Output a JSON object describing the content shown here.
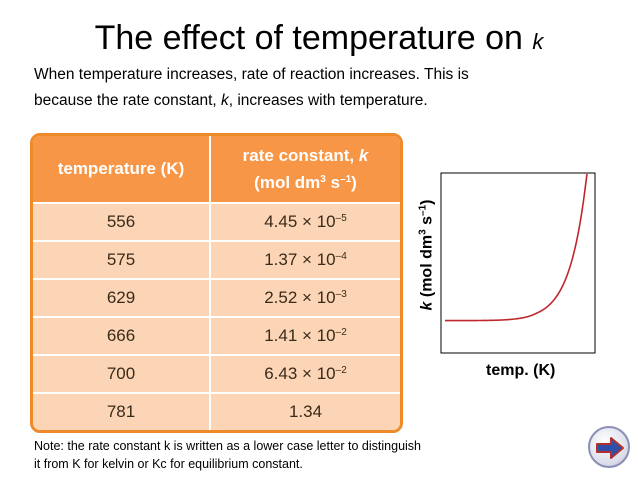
{
  "title": {
    "text": "The effect of temperature on ",
    "kvar": "k"
  },
  "intro": {
    "line1": "When temperature increases, rate of reaction increases. This is",
    "line2_pre": "because the rate constant, ",
    "line2_kvar": "k",
    "line2_post": ", increases with temperature."
  },
  "table": {
    "header_temp": "temperature (K)",
    "header_k_pre": "rate constant, ",
    "header_k_var": "k",
    "header_k_unit_a": "(mol dm",
    "header_k_unit_sup1": "3",
    "header_k_unit_b": " s",
    "header_k_unit_sup2": "–1",
    "header_k_unit_c": ")",
    "rows": [
      {
        "temp": "556",
        "mant": "4.45",
        "times": "×",
        "base": "10",
        "exp": "–5"
      },
      {
        "temp": "575",
        "mant": "1.37",
        "times": "×",
        "base": "10",
        "exp": "–4"
      },
      {
        "temp": "629",
        "mant": "2.52",
        "times": "×",
        "base": "10",
        "exp": "–3"
      },
      {
        "temp": "666",
        "mant": "1.41",
        "times": "×",
        "base": "10",
        "exp": "–2"
      },
      {
        "temp": "700",
        "mant": "6.43",
        "times": "×",
        "base": "10",
        "exp": "–2"
      },
      {
        "temp": "781",
        "mant": "1.34",
        "times": "",
        "base": "",
        "exp": ""
      }
    ]
  },
  "chart_data": {
    "type": "line",
    "title": "",
    "xlabel": "temp. (K)",
    "ylabel_kvar": "k",
    "ylabel_unit_a": " (mol dm",
    "ylabel_sup1": "3",
    "ylabel_unit_b": " s",
    "ylabel_sup2": "–1",
    "ylabel_unit_c": ")",
    "x": [
      556,
      575,
      629,
      666,
      700,
      781
    ],
    "series": [
      {
        "values": [
          4.45e-05,
          0.000137,
          0.00252,
          0.0141,
          0.0643,
          1.34
        ]
      }
    ],
    "curve_color": "#c0272d",
    "ticks": "none",
    "grid": false
  },
  "note": {
    "line1": "Note: the rate constant k is written as a lower case letter to distinguish",
    "line2": "it from K for kelvin or Kc for equilibrium constant."
  },
  "nav": {
    "icon": "arrow-right-icon"
  }
}
